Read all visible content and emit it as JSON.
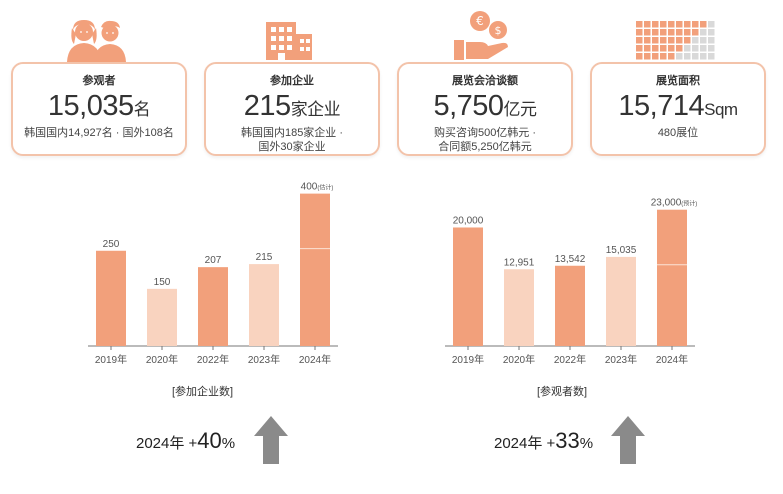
{
  "stats": [
    {
      "title": "参观者",
      "value": "15,035",
      "unit": "名",
      "sub1": "韩国国内14,927名 · 国外108名",
      "sub2": ""
    },
    {
      "title": "参加企业",
      "value": "215",
      "unit": "家企业",
      "sub1": "韩国国内185家企业 ·",
      "sub2": "国外30家企业"
    },
    {
      "title": "展览会洽谈额",
      "value": "5,750",
      "unit": "亿元",
      "sub1": "购买咨询500亿韩元 ·",
      "sub2": "合同额5,250亿韩元"
    },
    {
      "title": "展览面积",
      "value": "15,714",
      "unit": "Sqm",
      "sub1": "480展位",
      "sub2": ""
    }
  ],
  "icons": [
    "people-icon",
    "building-icon",
    "money-icon",
    "booth-grid-icon"
  ],
  "chart_data": [
    {
      "type": "bar",
      "title": "[参加企业数]",
      "categories": [
        "2019年",
        "2020年",
        "2022年",
        "2023年",
        "2024年"
      ],
      "values": [
        250,
        150,
        207,
        215,
        400
      ],
      "data_labels": [
        "250",
        "150",
        "207",
        "215",
        "400"
      ],
      "estimate_index": 4,
      "estimate_note": "(估计)",
      "ylim": [
        0,
        420
      ],
      "colors": [
        "#f2a07b",
        "#f9d3bf",
        "#f2a07b",
        "#f9d3bf",
        "#f2a07b"
      ]
    },
    {
      "type": "bar",
      "title": "[参观者数]",
      "categories": [
        "2019年",
        "2020年",
        "2022年",
        "2023年",
        "2024年"
      ],
      "values": [
        20000,
        12951,
        13542,
        15035,
        23000
      ],
      "data_labels": [
        "20,000",
        "12,951",
        "13,542",
        "15,035",
        "23,000"
      ],
      "estimate_index": 4,
      "estimate_note": "(预计)",
      "ylim": [
        0,
        27000
      ],
      "colors": [
        "#f2a07b",
        "#f9d3bf",
        "#f2a07b",
        "#f9d3bf",
        "#f2a07b"
      ]
    }
  ],
  "growth": [
    {
      "label": "2024年 +",
      "pct": "40",
      "suffix": "%"
    },
    {
      "label": "2024年 +",
      "pct": "33",
      "suffix": "%"
    }
  ],
  "colors": {
    "accent": "#f2a07b",
    "light": "#f9d3bf",
    "border": "#f3c3aa",
    "arrow": "#8a8a8a"
  }
}
